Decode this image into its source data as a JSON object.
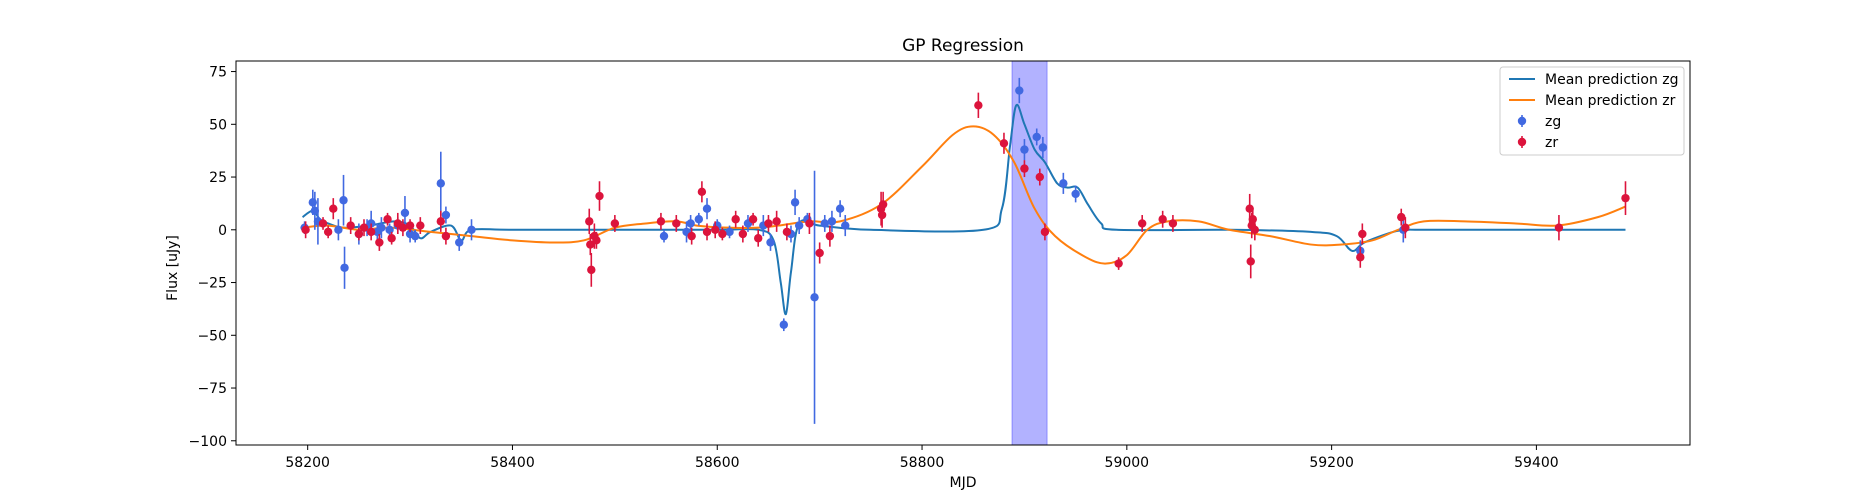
{
  "chart_data": {
    "type": "scatter",
    "title": "GP Regression",
    "xlabel": "MJD",
    "ylabel": "Flux [uJy]",
    "xlim": [
      58130,
      59550
    ],
    "ylim": [
      -102,
      80
    ],
    "xticks": [
      58200,
      58400,
      58600,
      58800,
      59000,
      59200,
      59400
    ],
    "yticks": [
      75,
      50,
      25,
      0,
      -25,
      -50,
      -75,
      -100
    ],
    "xtick_labels": [
      "58200",
      "58400",
      "58600",
      "58800",
      "59000",
      "59200",
      "59400"
    ],
    "ytick_labels": [
      "75",
      "50",
      "25",
      "0",
      "−25",
      "−50",
      "−75",
      "−100"
    ],
    "grid": false,
    "legend_position": "top-right",
    "highlight_span": {
      "x0": 58888,
      "x1": 58922,
      "color": "#8888ff"
    },
    "lines": [
      {
        "name": "Mean prediction zg",
        "color": "#1f77b4",
        "points": [
          [
            58195,
            6
          ],
          [
            58205,
            9
          ],
          [
            58212,
            5
          ],
          [
            58220,
            3
          ],
          [
            58235,
            1
          ],
          [
            58260,
            2
          ],
          [
            58285,
            4
          ],
          [
            58300,
            2
          ],
          [
            58310,
            -4
          ],
          [
            58320,
            -1
          ],
          [
            58340,
            2
          ],
          [
            58350,
            -5
          ],
          [
            58360,
            0
          ],
          [
            58400,
            0
          ],
          [
            58500,
            0
          ],
          [
            58600,
            0
          ],
          [
            58640,
            0
          ],
          [
            58655,
            -5
          ],
          [
            58662,
            -25
          ],
          [
            58667,
            -40
          ],
          [
            58672,
            -20
          ],
          [
            58680,
            3
          ],
          [
            58700,
            2
          ],
          [
            58750,
            0
          ],
          [
            58860,
            0
          ],
          [
            58878,
            10
          ],
          [
            58886,
            40
          ],
          [
            58892,
            59
          ],
          [
            58900,
            50
          ],
          [
            58910,
            38
          ],
          [
            58920,
            32
          ],
          [
            58932,
            22
          ],
          [
            58942,
            20
          ],
          [
            58952,
            20
          ],
          [
            58962,
            12
          ],
          [
            58975,
            3
          ],
          [
            58990,
            0
          ],
          [
            59100,
            0
          ],
          [
            59180,
            -1
          ],
          [
            59205,
            -3
          ],
          [
            59220,
            -10
          ],
          [
            59232,
            -6
          ],
          [
            59260,
            -1
          ],
          [
            59275,
            0
          ],
          [
            59300,
            0
          ],
          [
            59487,
            0
          ]
        ]
      },
      {
        "name": "Mean prediction zr",
        "color": "#ff7f0e",
        "points": [
          [
            58195,
            1
          ],
          [
            58220,
            2
          ],
          [
            58250,
            0
          ],
          [
            58280,
            1
          ],
          [
            58320,
            -1
          ],
          [
            58360,
            -3
          ],
          [
            58400,
            -5
          ],
          [
            58440,
            -6
          ],
          [
            58470,
            -5
          ],
          [
            58500,
            1
          ],
          [
            58530,
            3
          ],
          [
            58560,
            4
          ],
          [
            58580,
            2
          ],
          [
            58610,
            1
          ],
          [
            58640,
            1
          ],
          [
            58660,
            2
          ],
          [
            58690,
            4
          ],
          [
            58720,
            4
          ],
          [
            58760,
            12
          ],
          [
            58800,
            30
          ],
          [
            58830,
            45
          ],
          [
            58850,
            49
          ],
          [
            58870,
            45
          ],
          [
            58890,
            32
          ],
          [
            58910,
            10
          ],
          [
            58930,
            -3
          ],
          [
            58960,
            -13
          ],
          [
            58980,
            -16
          ],
          [
            59000,
            -12
          ],
          [
            59020,
            0
          ],
          [
            59040,
            4
          ],
          [
            59070,
            4
          ],
          [
            59100,
            0
          ],
          [
            59140,
            -3
          ],
          [
            59180,
            -7
          ],
          [
            59210,
            -7
          ],
          [
            59240,
            -5
          ],
          [
            59265,
            0
          ],
          [
            59290,
            4
          ],
          [
            59330,
            4
          ],
          [
            59380,
            3
          ],
          [
            59420,
            2
          ],
          [
            59460,
            6
          ],
          [
            59487,
            11
          ]
        ]
      }
    ],
    "series": [
      {
        "name": "zg",
        "color": "#4169e1",
        "points": [
          [
            58197,
            1,
            3
          ],
          [
            58205,
            13,
            6
          ],
          [
            58207,
            9,
            9
          ],
          [
            58210,
            4,
            11
          ],
          [
            58230,
            0,
            5
          ],
          [
            58235,
            14,
            12
          ],
          [
            58236,
            -18,
            10
          ],
          [
            58250,
            -2,
            5
          ],
          [
            58258,
            1,
            4
          ],
          [
            58262,
            3,
            6
          ],
          [
            58268,
            -1,
            4
          ],
          [
            58272,
            1,
            5
          ],
          [
            58280,
            0,
            3
          ],
          [
            58288,
            2,
            4
          ],
          [
            58295,
            8,
            8
          ],
          [
            58300,
            -2,
            4
          ],
          [
            58305,
            -3,
            3
          ],
          [
            58330,
            22,
            15
          ],
          [
            58335,
            7,
            4
          ],
          [
            58348,
            -6,
            4
          ],
          [
            58360,
            0,
            5
          ],
          [
            58548,
            -3,
            3
          ],
          [
            58570,
            -1,
            5
          ],
          [
            58574,
            3,
            4
          ],
          [
            58582,
            5,
            3
          ],
          [
            58590,
            10,
            5
          ],
          [
            58600,
            2,
            3
          ],
          [
            58612,
            -1,
            3
          ],
          [
            58630,
            3,
            4
          ],
          [
            58645,
            2,
            5
          ],
          [
            58652,
            -6,
            4
          ],
          [
            58665,
            -45,
            3
          ],
          [
            58672,
            -2,
            4
          ],
          [
            58676,
            13,
            6
          ],
          [
            58680,
            2,
            4
          ],
          [
            58688,
            5,
            3
          ],
          [
            58695,
            -32,
            60
          ],
          [
            58705,
            3,
            4
          ],
          [
            58712,
            4,
            5
          ],
          [
            58720,
            10,
            4
          ],
          [
            58725,
            2,
            5
          ],
          [
            58895,
            66,
            6
          ],
          [
            58900,
            38,
            5
          ],
          [
            58912,
            44,
            4
          ],
          [
            58918,
            39,
            5
          ],
          [
            58938,
            22,
            5
          ],
          [
            58950,
            17,
            4
          ],
          [
            59228,
            -10,
            5
          ],
          [
            59270,
            0,
            6
          ]
        ]
      },
      {
        "name": "zr",
        "color": "#dc143c",
        "points": [
          [
            58198,
            0,
            4
          ],
          [
            58215,
            3,
            3
          ],
          [
            58220,
            -1,
            3
          ],
          [
            58225,
            10,
            5
          ],
          [
            58242,
            2,
            4
          ],
          [
            58250,
            -2,
            3
          ],
          [
            58255,
            1,
            4
          ],
          [
            58262,
            -1,
            4
          ],
          [
            58270,
            -6,
            4
          ],
          [
            58278,
            5,
            3
          ],
          [
            58282,
            -4,
            3
          ],
          [
            58288,
            3,
            5
          ],
          [
            58293,
            1,
            4
          ],
          [
            58300,
            2,
            3
          ],
          [
            58310,
            2,
            4
          ],
          [
            58330,
            4,
            5
          ],
          [
            58335,
            -3,
            4
          ],
          [
            58475,
            4,
            6
          ],
          [
            58476,
            -7,
            5
          ],
          [
            58477,
            -19,
            8
          ],
          [
            58480,
            -3,
            6
          ],
          [
            58482,
            -5,
            4
          ],
          [
            58485,
            16,
            7
          ],
          [
            58500,
            3,
            4
          ],
          [
            58545,
            4,
            4
          ],
          [
            58560,
            3,
            4
          ],
          [
            58575,
            -3,
            4
          ],
          [
            58585,
            18,
            5
          ],
          [
            58590,
            -1,
            4
          ],
          [
            58598,
            0,
            4
          ],
          [
            58605,
            -2,
            3
          ],
          [
            58618,
            5,
            4
          ],
          [
            58625,
            -2,
            4
          ],
          [
            58635,
            5,
            3
          ],
          [
            58640,
            -4,
            4
          ],
          [
            58650,
            3,
            4
          ],
          [
            58658,
            4,
            5
          ],
          [
            58668,
            -1,
            4
          ],
          [
            58690,
            3,
            5
          ],
          [
            58700,
            -11,
            5
          ],
          [
            58710,
            -3,
            5
          ],
          [
            58760,
            10,
            8
          ],
          [
            58761,
            7,
            6
          ],
          [
            58762,
            12,
            6
          ],
          [
            58855,
            59,
            6
          ],
          [
            58880,
            41,
            5
          ],
          [
            58900,
            29,
            4
          ],
          [
            58915,
            25,
            4
          ],
          [
            58920,
            -1,
            4
          ],
          [
            58992,
            -16,
            3
          ],
          [
            59015,
            3,
            4
          ],
          [
            59035,
            5,
            4
          ],
          [
            59045,
            3,
            4
          ],
          [
            59120,
            10,
            7
          ],
          [
            59121,
            -15,
            8
          ],
          [
            59122,
            2,
            6
          ],
          [
            59123,
            5,
            5
          ],
          [
            59125,
            0,
            5
          ],
          [
            59228,
            -13,
            5
          ],
          [
            59230,
            -2,
            5
          ],
          [
            59268,
            6,
            4
          ],
          [
            59272,
            1,
            5
          ],
          [
            59422,
            1,
            6
          ],
          [
            59487,
            15,
            8
          ]
        ]
      }
    ]
  }
}
